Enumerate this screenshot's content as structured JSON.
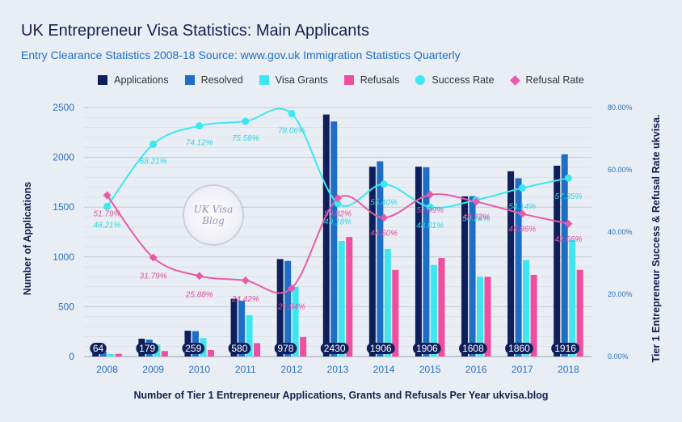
{
  "colors": {
    "applications": "#0f1f5c",
    "resolved": "#1f6ec5",
    "visa_grants": "#3ee6f0",
    "refusals": "#f04ea0",
    "success_rate": "#3ee6f0",
    "refusal_rate": "#e85aa8",
    "title": "#14204f",
    "subtitle": "#1f6ec5"
  },
  "watermark": {
    "line1": "UK Visa",
    "line2": "Blog"
  },
  "chart_data": {
    "type": "bar",
    "title": "UK Entrepreneur Visa Statistics: Main Applicants",
    "subtitle": "Entry Clearance Statistics 2008-18 Source: www.gov.uk Immigration Statistics Quarterly",
    "xlabel": "Number of Tier 1 Entrepreneur Applications, Grants and Refusals Per Year ukvisa.blog",
    "ylabel": "Number of Applications",
    "y2label": "Tier 1 Entrepreneur Success & Refusal Rate ukvisa.",
    "categories": [
      "2008",
      "2009",
      "2010",
      "2011",
      "2012",
      "2013",
      "2014",
      "2015",
      "2016",
      "2017",
      "2018"
    ],
    "ylim": [
      0,
      2500
    ],
    "yticks": [
      "0",
      "500",
      "1000",
      "1500",
      "2000",
      "2500"
    ],
    "y2lim": [
      0,
      80
    ],
    "y2ticks": [
      "0.00%",
      "20.00%",
      "40.00%",
      "60.00%",
      "80.00%"
    ],
    "grid": true,
    "legend_position": "top",
    "series": [
      {
        "name": "Applications",
        "type": "bar",
        "values": [
          64,
          179,
          259,
          580,
          978,
          2430,
          1906,
          1906,
          1608,
          1860,
          1916
        ],
        "labels": [
          "64",
          "179",
          "259",
          "580",
          "978",
          "2430",
          "1906",
          "1906",
          "1608",
          "1860",
          "1916"
        ]
      },
      {
        "name": "Resolved",
        "type": "bar",
        "values": [
          50,
          170,
          255,
          560,
          960,
          2360,
          1960,
          1900,
          1610,
          1790,
          2030
        ]
      },
      {
        "name": "Visa Grants",
        "type": "bar",
        "values": [
          25,
          120,
          185,
          415,
          700,
          1160,
          1080,
          920,
          800,
          970,
          1170
        ]
      },
      {
        "name": "Refusals",
        "type": "bar",
        "values": [
          27,
          55,
          65,
          135,
          195,
          1200,
          870,
          990,
          800,
          820,
          870
        ]
      },
      {
        "name": "Success Rate",
        "type": "line",
        "axis": "right",
        "values": [
          48.21,
          68.21,
          74.12,
          75.58,
          78.06,
          49.18,
          55.4,
          48.01,
          50.28,
          54.14,
          57.35
        ],
        "labels": [
          "48.21%",
          "68.21%",
          "74.12%",
          "75.58%",
          "78.06%",
          "49.18%",
          "55.40%",
          "48.01%",
          "50.28%",
          "54.14%",
          "57.35%"
        ]
      },
      {
        "name": "Refusal Rate",
        "type": "line",
        "axis": "right",
        "values": [
          51.79,
          31.79,
          25.88,
          24.42,
          21.94,
          50.82,
          44.6,
          51.99,
          49.72,
          45.86,
          42.66
        ],
        "labels": [
          "51.79%",
          "31.79%",
          "25.88%",
          "24.42%",
          "21.94%",
          "50.82%",
          "44.60%",
          "51.99%",
          "49.72%",
          "45.86%",
          "42.66%"
        ]
      }
    ]
  }
}
